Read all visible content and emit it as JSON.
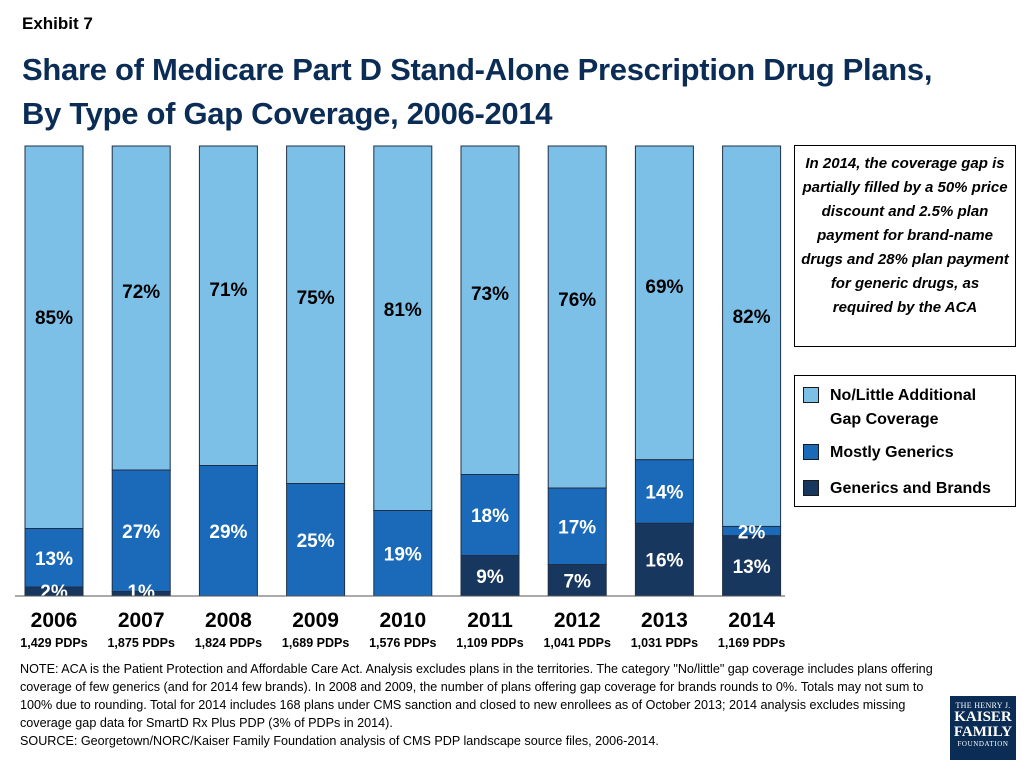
{
  "exhibit": "Exhibit 7",
  "title_line1": "Share of Medicare Part D Stand-Alone Prescription Drug Plans,",
  "title_line2": "By Type of Gap Coverage, 2006-2014",
  "callout": "In 2014, the coverage gap is partially filled by a 50% price discount and 2.5% plan payment for brand-name drugs and 28% plan payment for generic drugs, as required by the ACA",
  "colors": {
    "no_little": "#7cc0e8",
    "mostly_generics": "#1a6ab9",
    "generics_brands": "#17375e",
    "title": "#0b2d55",
    "bar_border": "#1f2f45"
  },
  "chart_data": {
    "type": "bar",
    "stacked": true,
    "title": "Share of Medicare Part D Stand-Alone Prescription Drug Plans, By Type of Gap Coverage, 2006-2014",
    "categories": [
      "2006",
      "2007",
      "2008",
      "2009",
      "2010",
      "2011",
      "2012",
      "2013",
      "2014"
    ],
    "sublabels": [
      "1,429 PDPs",
      "1,875 PDPs",
      "1,824 PDPs",
      "1,689 PDPs",
      "1,576 PDPs",
      "1,109 PDPs",
      "1,041 PDPs",
      "1,031 PDPs",
      "1,169 PDPs"
    ],
    "ylim": [
      0,
      100
    ],
    "series": [
      {
        "name": "Generics and Brands",
        "values": [
          2,
          1,
          0,
          0,
          0,
          9,
          7,
          16,
          13
        ],
        "labels": [
          "2%",
          "1%",
          "",
          "",
          "",
          "9%",
          "7%",
          "16%",
          "13%"
        ]
      },
      {
        "name": "Mostly Generics",
        "values": [
          13,
          27,
          29,
          25,
          19,
          18,
          17,
          14,
          2
        ],
        "labels": [
          "13%",
          "27%",
          "29%",
          "25%",
          "19%",
          "18%",
          "17%",
          "14%",
          "2%"
        ]
      },
      {
        "name": "No/Little Additional Gap Coverage",
        "values": [
          85,
          72,
          71,
          75,
          81,
          73,
          76,
          69,
          82
        ],
        "labels": [
          "85%",
          "72%",
          "71%",
          "75%",
          "81%",
          "73%",
          "76%",
          "69%",
          "82%"
        ]
      }
    ],
    "legend": [
      "No/Little Additional Gap Coverage",
      "Mostly Generics",
      "Generics and Brands"
    ]
  },
  "note": "NOTE: ACA is the Patient Protection and Affordable Care Act.  Analysis excludes plans in the territories.  The category \"No/little\" gap coverage includes plans offering coverage of few generics (and for 2014 few brands). In 2008 and 2009, the number of plans offering gap coverage for brands rounds to 0%. Totals may not sum to 100% due to rounding. Total for 2014 includes 168 plans under CMS sanction and closed to new enrollees as of October 2013; 2014 analysis excludes missing coverage gap data for SmartD Rx Plus PDP (3% of PDPs in 2014).",
  "source": "SOURCE: Georgetown/NORC/Kaiser Family Foundation analysis of CMS PDP landscape source files, 2006-2014.",
  "logo": {
    "line1": "THE HENRY J.",
    "line2": "KAISER",
    "line3": "FAMILY",
    "line4": "FOUNDATION"
  }
}
